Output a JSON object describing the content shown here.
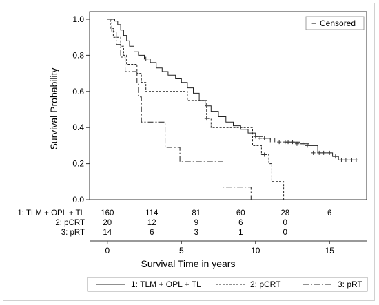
{
  "chart_data": {
    "type": "line",
    "xlabel": "Survival Time in years",
    "ylabel": "Survival Probability",
    "xlim": [
      -1.2,
      17.5
    ],
    "ylim": [
      0,
      1.0
    ],
    "xticks": [
      "0",
      "5",
      "10",
      "15"
    ],
    "yticks": [
      "0.0",
      "0.2",
      "0.4",
      "0.6",
      "0.8",
      "1.0"
    ],
    "grid": false,
    "censor_legend": {
      "symbol": "+",
      "label": "Censored",
      "color": "#1f3d8f"
    },
    "series": [
      {
        "name": "1: TLM + OPL + TL",
        "style": "solid",
        "steps": [
          [
            0,
            1.0
          ],
          [
            0.4,
            1.0
          ],
          [
            0.5,
            0.99
          ],
          [
            0.7,
            0.97
          ],
          [
            0.9,
            0.94
          ],
          [
            1.1,
            0.91
          ],
          [
            1.3,
            0.88
          ],
          [
            1.5,
            0.85
          ],
          [
            1.8,
            0.82
          ],
          [
            2.1,
            0.8
          ],
          [
            2.5,
            0.78
          ],
          [
            2.9,
            0.76
          ],
          [
            3.3,
            0.73
          ],
          [
            3.7,
            0.71
          ],
          [
            4.1,
            0.69
          ],
          [
            4.6,
            0.67
          ],
          [
            5.0,
            0.65
          ],
          [
            5.4,
            0.62
          ],
          [
            5.8,
            0.59
          ],
          [
            6.2,
            0.55
          ],
          [
            6.6,
            0.52
          ],
          [
            7.0,
            0.49
          ],
          [
            7.5,
            0.46
          ],
          [
            8.0,
            0.43
          ],
          [
            8.5,
            0.41
          ],
          [
            9.0,
            0.39
          ],
          [
            9.5,
            0.37
          ],
          [
            10.0,
            0.35
          ],
          [
            10.5,
            0.34
          ],
          [
            11.0,
            0.33
          ],
          [
            12.0,
            0.32
          ],
          [
            13.0,
            0.31
          ],
          [
            13.6,
            0.3
          ],
          [
            14.2,
            0.26
          ],
          [
            15.2,
            0.24
          ],
          [
            15.6,
            0.22
          ],
          [
            16.8,
            0.22
          ]
        ],
        "censored": [
          [
            2.6,
            0.78
          ],
          [
            10.0,
            0.35
          ],
          [
            10.3,
            0.34
          ],
          [
            10.6,
            0.34
          ],
          [
            11.0,
            0.33
          ],
          [
            11.3,
            0.33
          ],
          [
            11.6,
            0.32
          ],
          [
            12.0,
            0.32
          ],
          [
            12.2,
            0.32
          ],
          [
            12.5,
            0.32
          ],
          [
            12.8,
            0.31
          ],
          [
            13.2,
            0.31
          ],
          [
            13.5,
            0.3
          ],
          [
            13.9,
            0.26
          ],
          [
            14.3,
            0.26
          ],
          [
            14.6,
            0.26
          ],
          [
            15.0,
            0.26
          ],
          [
            15.4,
            0.24
          ],
          [
            15.8,
            0.22
          ],
          [
            16.1,
            0.22
          ],
          [
            16.5,
            0.22
          ],
          [
            16.8,
            0.22
          ]
        ],
        "at_risk": [
          "160",
          "114",
          "81",
          "60",
          "28",
          "6"
        ]
      },
      {
        "name": "2: pCRT",
        "style": "dashed",
        "steps": [
          [
            0,
            1.0
          ],
          [
            0.2,
            0.95
          ],
          [
            0.4,
            0.9
          ],
          [
            0.9,
            0.85
          ],
          [
            1.1,
            0.8
          ],
          [
            1.3,
            0.75
          ],
          [
            2.0,
            0.7
          ],
          [
            2.3,
            0.65
          ],
          [
            2.6,
            0.6
          ],
          [
            5.4,
            0.55
          ],
          [
            6.7,
            0.45
          ],
          [
            7.0,
            0.4
          ],
          [
            9.8,
            0.3
          ],
          [
            10.4,
            0.25
          ],
          [
            10.9,
            0.2
          ],
          [
            11.1,
            0.1
          ],
          [
            11.9,
            0.0
          ]
        ],
        "censored": [
          [
            6.7,
            0.45
          ],
          [
            10.6,
            0.25
          ]
        ],
        "at_risk": [
          "20",
          "12",
          "9",
          "6",
          "0",
          ""
        ]
      },
      {
        "name": "3: pRT",
        "style": "dashdot",
        "steps": [
          [
            0,
            1.0
          ],
          [
            0.3,
            0.93
          ],
          [
            0.6,
            0.86
          ],
          [
            0.9,
            0.79
          ],
          [
            1.2,
            0.71
          ],
          [
            2.0,
            0.64
          ],
          [
            2.1,
            0.57
          ],
          [
            2.3,
            0.43
          ],
          [
            3.9,
            0.29
          ],
          [
            4.9,
            0.21
          ],
          [
            7.8,
            0.07
          ],
          [
            9.7,
            0.0
          ]
        ],
        "censored": [],
        "at_risk": [
          "14",
          "6",
          "3",
          "1",
          "0",
          ""
        ]
      }
    ]
  }
}
